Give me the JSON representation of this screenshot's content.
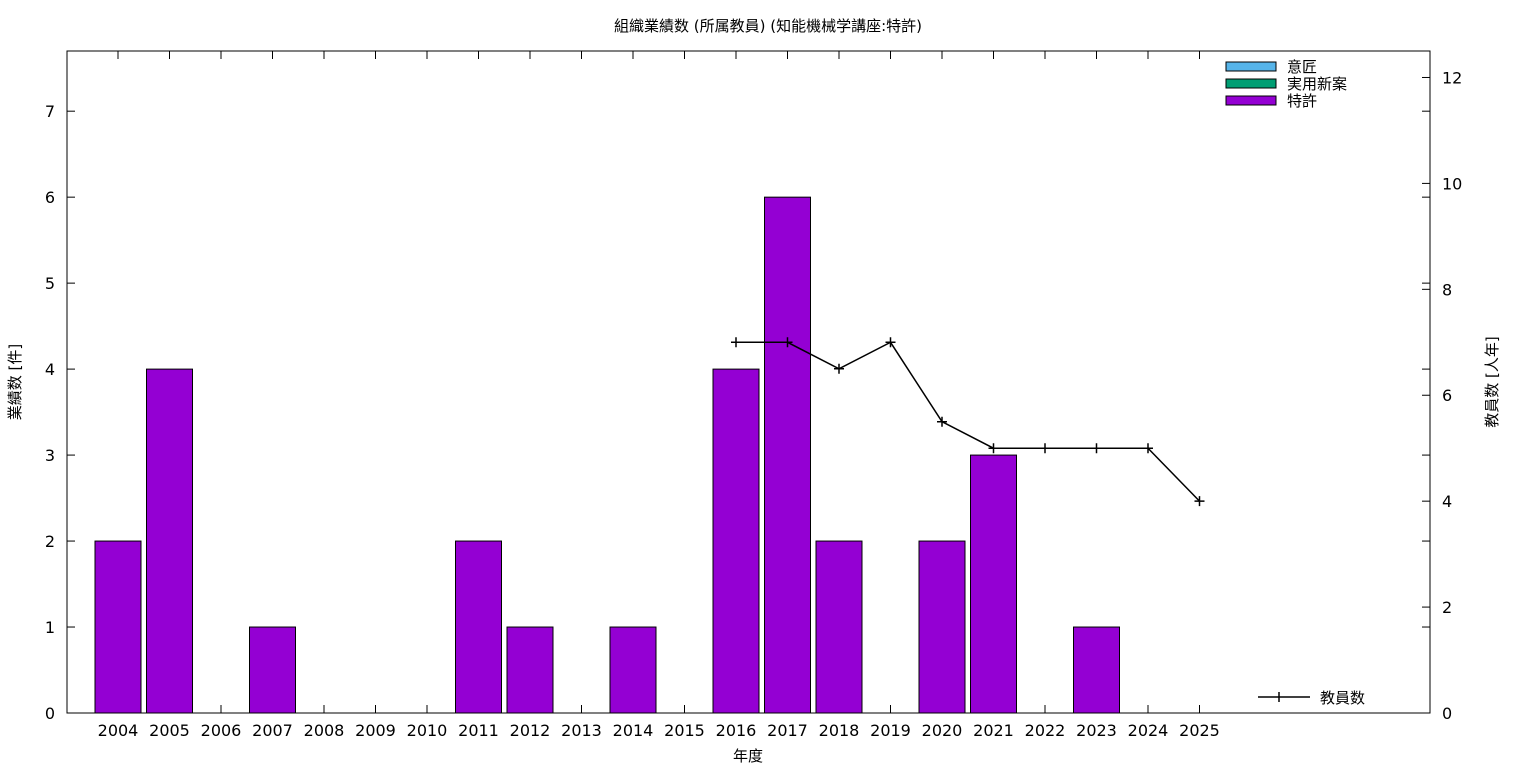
{
  "chart_data": {
    "type": "bar",
    "title": "組織業績数 (所属教員) (知能機械学講座:特許)",
    "xlabel": "年度",
    "ylabel": "業績数 [件]",
    "y2label": "教員数 [人年]",
    "categories": [
      "2004",
      "2005",
      "2006",
      "2007",
      "2008",
      "2009",
      "2010",
      "2011",
      "2012",
      "2013",
      "2014",
      "2015",
      "2016",
      "2017",
      "2018",
      "2019",
      "2020",
      "2021",
      "2022",
      "2023",
      "2024",
      "2025"
    ],
    "ylim": [
      0,
      7.7
    ],
    "y2lim": [
      0,
      12.5
    ],
    "yticks": [
      0,
      1,
      2,
      3,
      4,
      5,
      6,
      7
    ],
    "y2ticks": [
      0,
      2,
      4,
      6,
      8,
      10,
      12
    ],
    "series": [
      {
        "name": "意匠",
        "color": "#56b4e9",
        "values": [
          0,
          0,
          0,
          0,
          0,
          0,
          0,
          0,
          0,
          0,
          0,
          0,
          0,
          0,
          0,
          0,
          0,
          0,
          0,
          0,
          0,
          0
        ]
      },
      {
        "name": "実用新案",
        "color": "#009e73",
        "values": [
          0,
          0,
          0,
          0,
          0,
          0,
          0,
          0,
          0,
          0,
          0,
          0,
          0,
          0,
          0,
          0,
          0,
          0,
          0,
          0,
          0,
          0
        ]
      },
      {
        "name": "特許",
        "color": "#9400d3",
        "values": [
          2,
          4,
          0,
          1,
          0,
          0,
          0,
          2,
          1,
          0,
          1,
          0,
          4,
          6,
          2,
          0,
          2,
          3,
          0,
          1,
          0,
          0
        ]
      }
    ],
    "line_series": {
      "name": "教員数",
      "color": "#000000",
      "axis": "y2",
      "x": [
        "2016",
        "2017",
        "2018",
        "2019",
        "2020",
        "2021",
        "2022",
        "2023",
        "2024",
        "2025"
      ],
      "values": [
        7,
        7,
        6.5,
        7,
        5.5,
        5,
        5,
        5,
        5,
        4
      ]
    },
    "legend_position": "top-right",
    "line_legend_position": "bottom-right",
    "grid": false
  }
}
